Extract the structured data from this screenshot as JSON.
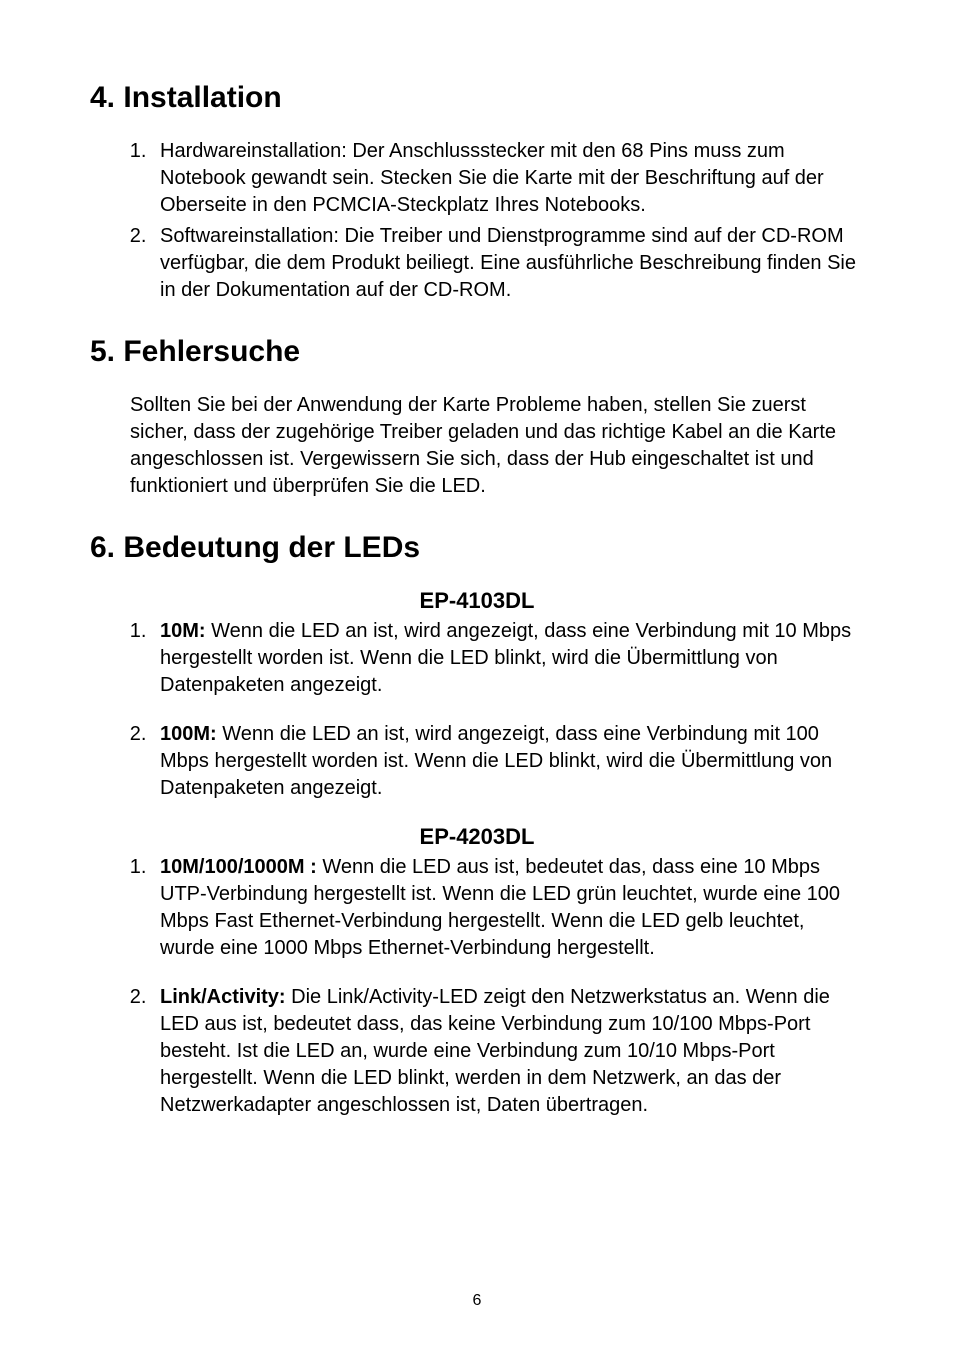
{
  "page": {
    "number": "6",
    "background_color": "#ffffff",
    "text_color": "#000000",
    "font_family": "Arial"
  },
  "sections": {
    "installation": {
      "heading": "4. Installation",
      "items": [
        "Hardwareinstallation: Der Anschlussstecker mit den 68 Pins muss zum Notebook gewandt sein. Stecken Sie die Karte mit der Beschriftung auf der Oberseite in den PCMCIA-Steckplatz Ihres Notebooks.",
        "Softwareinstallation: Die Treiber und Dienstprogramme sind auf der CD-ROM verfügbar, die dem Produkt beiliegt. Eine ausführliche Beschreibung finden Sie in der Dokumentation auf der CD-ROM."
      ]
    },
    "troubleshooting": {
      "heading": "5. Fehlersuche",
      "paragraph": "Sollten Sie bei der Anwendung der Karte Probleme haben, stellen Sie zuerst sicher, dass der zugehörige Treiber geladen und das richtige Kabel an die Karte angeschlossen ist. Vergewissern Sie sich, dass der Hub eingeschaltet ist und funktioniert und überprüfen Sie die LED."
    },
    "leds": {
      "heading": "6. Bedeutung der LEDs",
      "product1": {
        "name": "EP-4103DL",
        "items": [
          {
            "label": "10M:",
            "text": " Wenn die LED an ist, wird angezeigt, dass eine Verbindung mit 10 Mbps hergestellt worden ist. Wenn die LED blinkt, wird die Übermittlung von Datenpaketen angezeigt."
          },
          {
            "label": "100M:",
            "text": " Wenn die LED an ist, wird angezeigt, dass eine Verbindung mit 100 Mbps hergestellt worden ist. Wenn die LED blinkt, wird die Übermittlung von Datenpaketen angezeigt."
          }
        ]
      },
      "product2": {
        "name": "EP-4203DL",
        "items": [
          {
            "label": "10M/100/1000M :",
            "text": " Wenn die LED aus ist, bedeutet das, dass eine 10 Mbps UTP-Verbindung hergestellt ist. Wenn die LED grün leuchtet, wurde eine 100 Mbps Fast Ethernet-Verbindung hergestellt. Wenn die LED gelb leuchtet, wurde eine 1000 Mbps Ethernet-Verbindung hergestellt."
          },
          {
            "label": "Link/Activity:",
            "text": " Die Link/Activity-LED zeigt den Netzwerkstatus an. Wenn die LED aus ist, bedeutet dass, das keine Verbindung zum 10/100 Mbps-Port besteht. Ist die LED an, wurde eine Verbindung zum 10/10 Mbps-Port hergestellt. Wenn die LED blinkt, werden in dem Netzwerk, an das der Netzwerkadapter angeschlossen ist, Daten übertragen."
          }
        ]
      }
    }
  }
}
